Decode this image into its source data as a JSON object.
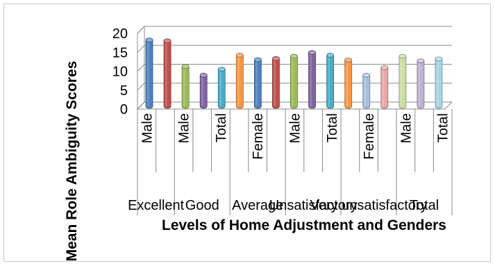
{
  "chart_data": {
    "type": "bar",
    "ylabel": "Mean Role Ambiguity Scores",
    "xlabel": "Levels of Home Adjustment and Genders",
    "ylim": [
      0,
      20
    ],
    "yticks": [
      "0",
      "5",
      "10",
      "15",
      "20"
    ],
    "grid": true,
    "style": "3d-cylinder",
    "categories": [
      "Male",
      "",
      "Male",
      "",
      "Total",
      "",
      "Female",
      "",
      "Male",
      "",
      "Total",
      "",
      "Female",
      "",
      "Male",
      "",
      "Total"
    ],
    "values": [
      17.5,
      17.3,
      10.5,
      8.2,
      9.8,
      13.5,
      12.3,
      12.6,
      13.2,
      14.2,
      13.5,
      12.2,
      8.2,
      10.2,
      13.2,
      12.0,
      12.5
    ],
    "groups": [
      {
        "label": "Excellent",
        "count": 2
      },
      {
        "label": "Good",
        "count": 3
      },
      {
        "label": "Average",
        "count": 3
      },
      {
        "label": "Unsatisfactory",
        "count": 3
      },
      {
        "label": "Very unsatisfactory",
        "count": 3
      },
      {
        "label": "Total",
        "count": 3
      }
    ]
  },
  "colors": [
    "#4f81bd",
    "#c0504d",
    "#9bbb59",
    "#8064a2",
    "#4bacc6",
    "#f79646",
    "#4f81bd",
    "#c0504d",
    "#9bbb59",
    "#8064a2",
    "#4bacc6",
    "#f79646",
    "#a7bfde",
    "#e6a8a7",
    "#cddda2",
    "#bfb1d0",
    "#a5d5e2"
  ]
}
